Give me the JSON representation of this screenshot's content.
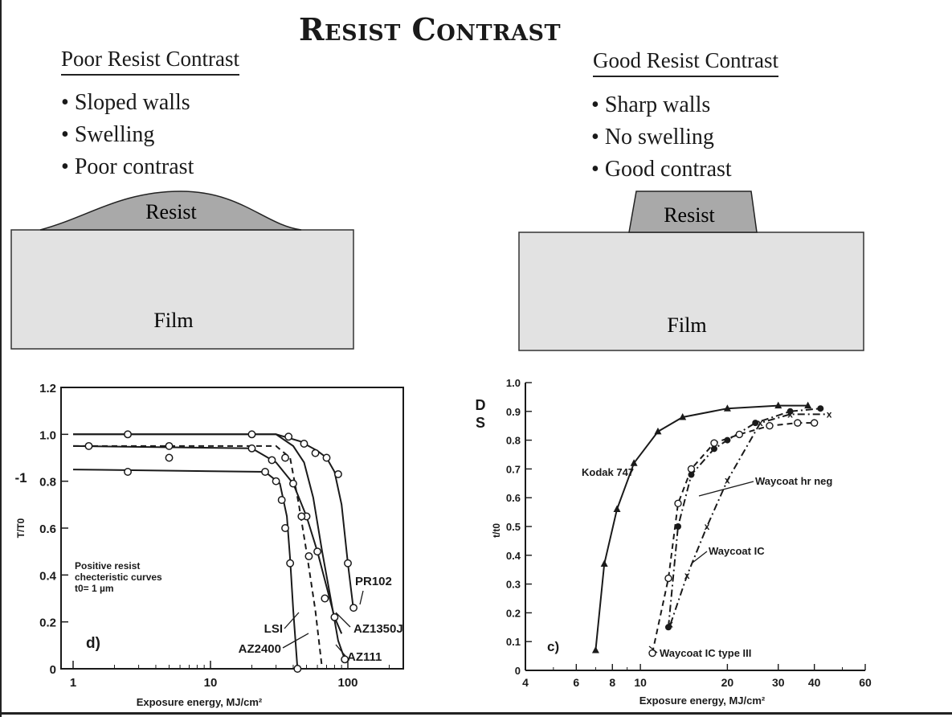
{
  "slide": {
    "title": "Resist Contrast"
  },
  "poor": {
    "heading": "Poor Resist Contrast",
    "bullets": [
      "Sloped walls",
      "Swelling",
      "Poor contrast"
    ],
    "resist_label": "Resist",
    "film_label": "Film"
  },
  "good": {
    "heading": "Good Resist Contrast",
    "bullets": [
      "Sharp walls",
      "No swelling",
      "Good contrast"
    ],
    "resist_label": "Resist",
    "film_label": "Film"
  },
  "colors": {
    "ink": "#1a1a1a",
    "resist_fill": "#a9a9a9",
    "film_fill": "#e2e2e2"
  },
  "chart_data": [
    {
      "type": "line",
      "panel_label": "d)",
      "xscale": "log",
      "xlim": [
        1,
        200
      ],
      "ylim": [
        0,
        1.2
      ],
      "xticks": [
        1,
        10,
        100
      ],
      "xtick_labels": [
        "1",
        "10",
        "100"
      ],
      "yticks": [
        0,
        0.2,
        0.4,
        0.6,
        0.8,
        1.0,
        1.2
      ],
      "ytick_labels": [
        "0",
        "0.2",
        "0.4",
        "0.6",
        "0.8",
        "1.0",
        "1.2"
      ],
      "xlabel": "Exposure energy, MJ/cm²",
      "ylabel": "T/T0",
      "side_mark": "-1",
      "annotation": [
        "Positive resist",
        "checteristic curves",
        "t0= 1 µm"
      ],
      "series": [
        {
          "name": "LSI",
          "style": "solid",
          "x": [
            1,
            25,
            32,
            36,
            38,
            40,
            43
          ],
          "y": [
            0.85,
            0.84,
            0.79,
            0.65,
            0.47,
            0.25,
            0.0
          ]
        },
        {
          "name": "AZ2400",
          "style": "dashed",
          "x": [
            1,
            30,
            38,
            44,
            50,
            58,
            65
          ],
          "y": [
            0.95,
            0.95,
            0.9,
            0.7,
            0.5,
            0.25,
            0.0
          ]
        },
        {
          "name": "AZ1350J",
          "style": "solid",
          "x": [
            1,
            20,
            30,
            40,
            50,
            60,
            70,
            80,
            90
          ],
          "y": [
            0.95,
            0.94,
            0.88,
            0.79,
            0.65,
            0.5,
            0.35,
            0.22,
            0.15
          ]
        },
        {
          "name": "AZ111",
          "style": "solid",
          "x": [
            1,
            30,
            40,
            48,
            56,
            65,
            75,
            85,
            95
          ],
          "y": [
            1.0,
            1.0,
            0.95,
            0.88,
            0.73,
            0.5,
            0.3,
            0.12,
            0.04
          ]
        },
        {
          "name": "PR102",
          "style": "solid",
          "x": [
            1,
            30,
            45,
            60,
            70,
            80,
            90,
            100,
            110
          ],
          "y": [
            1.0,
            1.0,
            0.97,
            0.93,
            0.9,
            0.84,
            0.7,
            0.45,
            0.25
          ]
        }
      ],
      "circle_markers": [
        {
          "x": 2.5,
          "y": 1.0
        },
        {
          "x": 20,
          "y": 1.0
        },
        {
          "x": 37,
          "y": 0.99
        },
        {
          "x": 48,
          "y": 0.96
        },
        {
          "x": 58,
          "y": 0.92
        },
        {
          "x": 70,
          "y": 0.9
        },
        {
          "x": 85,
          "y": 0.83
        },
        {
          "x": 100,
          "y": 0.45
        },
        {
          "x": 110,
          "y": 0.26
        },
        {
          "x": 1.3,
          "y": 0.95
        },
        {
          "x": 5,
          "y": 0.95
        },
        {
          "x": 20,
          "y": 0.94
        },
        {
          "x": 28,
          "y": 0.89
        },
        {
          "x": 40,
          "y": 0.79
        },
        {
          "x": 50,
          "y": 0.65
        },
        {
          "x": 60,
          "y": 0.5
        },
        {
          "x": 68,
          "y": 0.3
        },
        {
          "x": 80,
          "y": 0.22
        },
        {
          "x": 2.5,
          "y": 0.84
        },
        {
          "x": 25,
          "y": 0.84
        },
        {
          "x": 30,
          "y": 0.8
        },
        {
          "x": 33,
          "y": 0.72
        },
        {
          "x": 35,
          "y": 0.6
        },
        {
          "x": 38,
          "y": 0.45
        },
        {
          "x": 43,
          "y": 0.0
        },
        {
          "x": 5,
          "y": 0.9
        },
        {
          "x": 35,
          "y": 0.9
        },
        {
          "x": 46,
          "y": 0.65
        },
        {
          "x": 52,
          "y": 0.48
        },
        {
          "x": 95,
          "y": 0.04
        }
      ]
    },
    {
      "type": "line",
      "panel_label": "c)",
      "xscale": "log",
      "xlim": [
        4,
        60
      ],
      "ylim": [
        0,
        1.0
      ],
      "xticks": [
        4,
        6,
        8,
        10,
        20,
        30,
        40,
        60
      ],
      "xtick_labels": [
        "4",
        "6",
        "8",
        "10",
        "20",
        "30",
        "40",
        "60"
      ],
      "yticks": [
        0,
        0.1,
        0.2,
        0.3,
        0.4,
        0.5,
        0.6,
        0.7,
        0.8,
        0.9,
        1.0
      ],
      "ytick_labels": [
        "0",
        "0.1",
        "0.2",
        "0.3",
        "0.4",
        "0.5",
        "0.6",
        "0.7",
        "0.8",
        "0.9",
        "1.0"
      ],
      "xlabel": "Exposure energy, MJ/cm²",
      "ylabel": "t/t0",
      "side_mark": "D\nS",
      "series": [
        {
          "name": "Kodak 747",
          "style": "solid",
          "marker": "triangle",
          "x": [
            7,
            7.5,
            8.3,
            9.5,
            11.5,
            14,
            20,
            30,
            38
          ],
          "y": [
            0.07,
            0.37,
            0.56,
            0.72,
            0.83,
            0.88,
            0.91,
            0.92,
            0.92
          ]
        },
        {
          "name": "Waycoat hr neg",
          "style": "dash-dot",
          "marker": "filled-circle",
          "x": [
            12.5,
            13.5,
            15,
            18,
            20,
            25,
            33,
            42
          ],
          "y": [
            0.15,
            0.5,
            0.68,
            0.77,
            0.8,
            0.86,
            0.9,
            0.91
          ]
        },
        {
          "name": "Waycoat IC",
          "style": "dash-dot",
          "marker": "x",
          "x": [
            12.7,
            14.5,
            17,
            20,
            26,
            33,
            45
          ],
          "y": [
            0.16,
            0.33,
            0.5,
            0.66,
            0.86,
            0.89,
            0.89
          ]
        },
        {
          "name": "Waycoat IC type III",
          "style": "dashed",
          "marker": "open-circle",
          "x": [
            11,
            12.5,
            13.5,
            15,
            18,
            22,
            28,
            35,
            40
          ],
          "y": [
            0.06,
            0.32,
            0.58,
            0.7,
            0.79,
            0.82,
            0.85,
            0.86,
            0.86
          ]
        }
      ]
    }
  ]
}
